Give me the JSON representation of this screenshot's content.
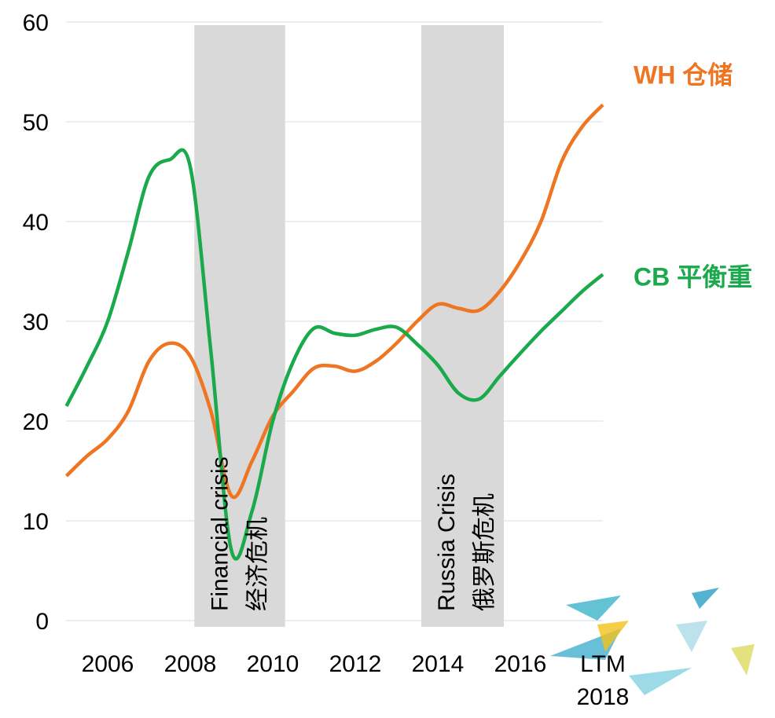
{
  "chart_data": {
    "type": "line",
    "x": [
      2005,
      2005.5,
      2006,
      2006.5,
      2007,
      2007.5,
      2008,
      2008.5,
      2009,
      2009.5,
      2010,
      2010.5,
      2011,
      2011.5,
      2012,
      2012.5,
      2013,
      2013.5,
      2014,
      2014.5,
      2015,
      2015.5,
      2016,
      2016.5,
      2017,
      2017.5,
      2018
    ],
    "series": [
      {
        "name": "WH 仓储",
        "color": "#ee7623",
        "values": [
          14.5,
          16.5,
          18.2,
          21,
          26,
          27.8,
          26.5,
          21,
          12.5,
          16,
          20.5,
          23,
          25.3,
          25.5,
          25,
          26,
          27.8,
          30,
          31.7,
          31.3,
          31.1,
          33,
          36,
          40,
          46,
          49.5,
          51.7
        ]
      },
      {
        "name": "CB 平衡重",
        "color": "#1aaa4b",
        "values": [
          21.5,
          25.5,
          30,
          37,
          44.5,
          46.2,
          45.5,
          27,
          7,
          11,
          20,
          26,
          29.3,
          28.8,
          28.6,
          29.2,
          29.4,
          27.7,
          25.6,
          22.8,
          22.2,
          24.5,
          26.8,
          29,
          31,
          33,
          34.7
        ]
      }
    ],
    "shaded_periods": [
      {
        "start": 2008.1,
        "end": 2010.3,
        "label": [
          "Financial crisis",
          "经济危机"
        ]
      },
      {
        "start": 2013.6,
        "end": 2015.6,
        "label": [
          "Russia Crisis",
          "俄罗斯危机"
        ]
      }
    ],
    "xlim": [
      2005,
      2018
    ],
    "xticks": [
      2006,
      2008,
      2010,
      2012,
      2014,
      2016,
      {
        "value": 2018,
        "label": "LTM 2018"
      }
    ],
    "ylim": [
      0,
      60
    ],
    "yticks": [
      0,
      10,
      20,
      30,
      40,
      50,
      60
    ],
    "grid": true
  }
}
